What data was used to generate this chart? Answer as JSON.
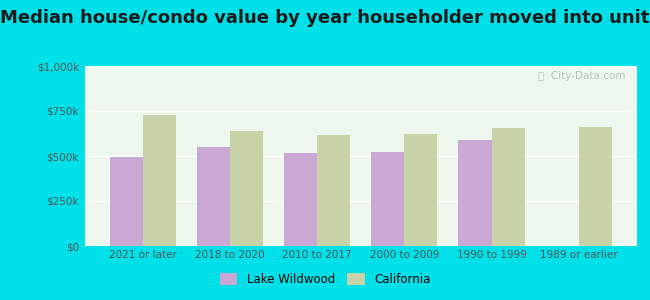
{
  "title": "Median house/condo value by year householder moved into unit",
  "categories": [
    "2021 or later",
    "2018 to 2020",
    "2010 to 2017",
    "2000 to 2009",
    "1990 to 1999",
    "1989 or earlier"
  ],
  "lake_wildwood": [
    495000,
    550000,
    515000,
    525000,
    590000,
    0
  ],
  "california": [
    730000,
    640000,
    615000,
    625000,
    655000,
    660000
  ],
  "bar_color_lw": "#c9a8d4",
  "bar_color_ca": "#c8d4a8",
  "background_outer": "#00e0e8",
  "background_plot": "#edf7ed",
  "ylim": [
    0,
    1000000
  ],
  "yticks": [
    0,
    250000,
    500000,
    750000,
    1000000
  ],
  "ylabel_labels": [
    "$0",
    "$250k",
    "$500k",
    "$750k",
    "$1,000k"
  ],
  "legend_lw": "Lake Wildwood",
  "legend_ca": "California",
  "watermark": "ⓘ  City-Data.com",
  "title_fontsize": 13,
  "tick_fontsize": 7.5,
  "bar_width": 0.38
}
